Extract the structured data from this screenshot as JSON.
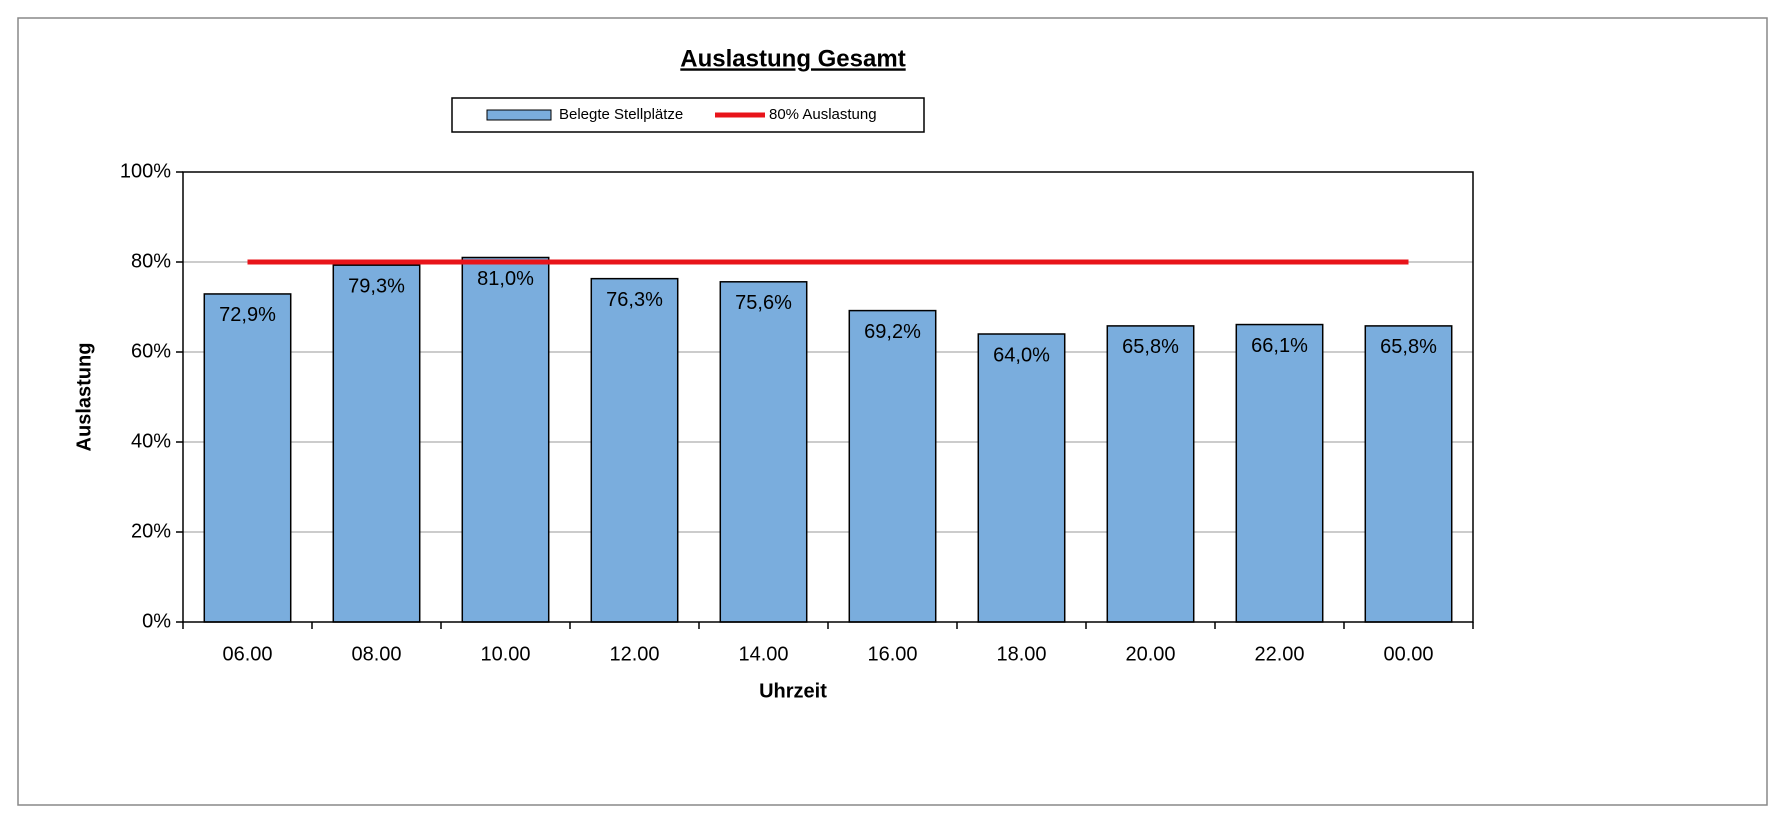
{
  "chart_data": {
    "type": "bar",
    "title": "Auslastung Gesamt",
    "x_label": "Uhrzeit",
    "y_label": "Auslastung",
    "categories": [
      "06.00",
      "08.00",
      "10.00",
      "12.00",
      "14.00",
      "16.00",
      "18.00",
      "20.00",
      "22.00",
      "00.00"
    ],
    "series": [
      {
        "name": "Belegte Stellplätze",
        "color": "#7aaddd",
        "values": [
          72.9,
          79.3,
          81.0,
          76.3,
          75.6,
          69.2,
          64.0,
          65.8,
          66.1,
          65.8
        ],
        "value_labels": [
          "72,9%",
          "79,3%",
          "81,0%",
          "76,3%",
          "75,6%",
          "69,2%",
          "64,0%",
          "65,8%",
          "66,1%",
          "65,8%"
        ]
      },
      {
        "name": "80% Auslastung",
        "type": "line",
        "color": "#e8141a",
        "values": [
          80,
          80,
          80,
          80,
          80,
          80,
          80,
          80,
          80,
          80
        ]
      }
    ],
    "ylim": [
      0,
      100
    ],
    "yticks": [
      {
        "value": 0,
        "label": "0%"
      },
      {
        "value": 20,
        "label": "20%"
      },
      {
        "value": 40,
        "label": "40%"
      },
      {
        "value": 60,
        "label": "60%"
      },
      {
        "value": 80,
        "label": "80%"
      },
      {
        "value": 100,
        "label": "100%"
      }
    ],
    "grid": true,
    "legend": "top"
  }
}
